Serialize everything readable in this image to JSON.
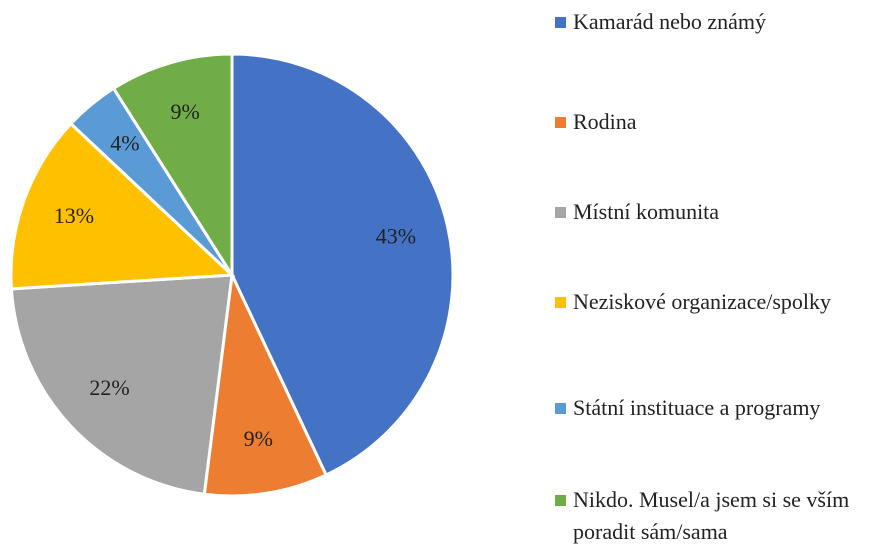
{
  "chart_data": {
    "type": "pie",
    "categories": [
      "Kamarád nebo známý",
      "Rodina",
      "Místní komunita",
      "Neziskové organizace/spolky",
      "Státní instituace a programy",
      "Nikdo. Musel/a jsem si se vším poradit sám/sama"
    ],
    "values": [
      43,
      9,
      22,
      13,
      4,
      9
    ],
    "value_labels": [
      "43%",
      "9%",
      "22%",
      "13%",
      "4%",
      "9%"
    ],
    "colors": [
      "#4472c4",
      "#ed7d31",
      "#a5a5a5",
      "#ffc000",
      "#5b9bd5",
      "#70ad47"
    ],
    "legend": "right"
  }
}
